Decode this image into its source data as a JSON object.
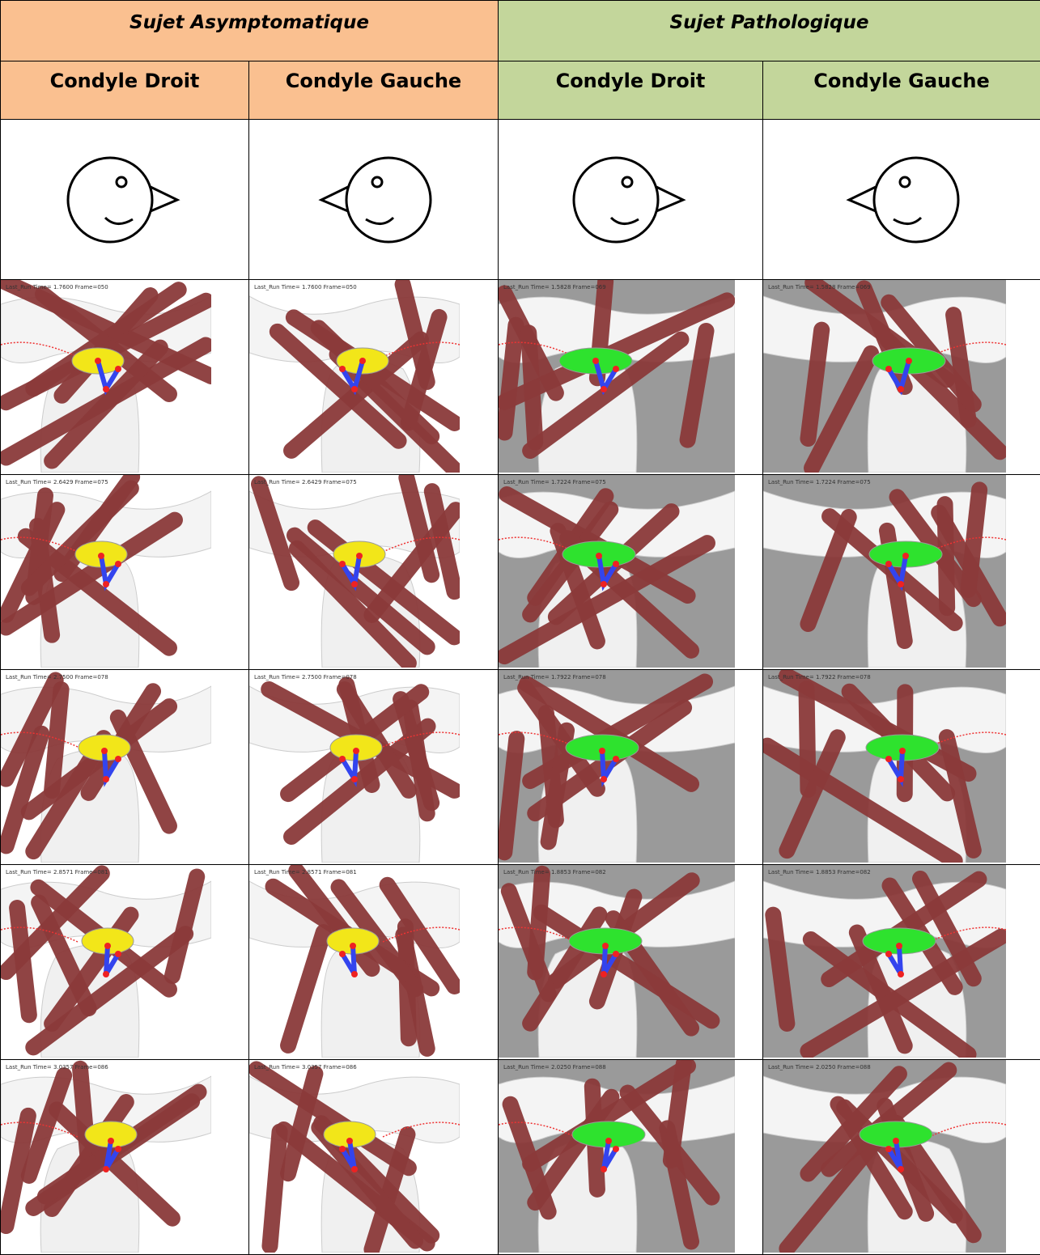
{
  "table": {
    "groups": [
      "Sujet Asymptomatique",
      "Sujet Pathologique"
    ],
    "columns": [
      "Condyle Droit",
      "Condyle Gauche",
      "Condyle Droit",
      "Condyle Gauche"
    ],
    "rows": [
      [
        "Last_Run Time= 1.7600 Frame=050",
        "Last_Run Time= 1.7600 Frame=050",
        "Last_Run Time= 1.5828 Frame=069",
        "Last_Run Time= 1.5828 Frame=069"
      ],
      [
        "Last_Run Time= 2.6429 Frame=075",
        "Last_Run Time= 2.6429 Frame=075",
        "Last_Run Time= 1.7224 Frame=075",
        "Last_Run Time= 1.7224 Frame=075"
      ],
      [
        "Last_Run Time= 2.7500 Frame=078",
        "Last_Run Time= 2.7500 Frame=078",
        "Last_Run Time= 1.7922 Frame=078",
        "Last_Run Time= 1.7922 Frame=078"
      ],
      [
        "Last_Run Time= 2.8571 Frame=081",
        "Last_Run Time= 2.8571 Frame=081",
        "Last_Run Time= 1.8853 Frame=082",
        "Last_Run Time= 1.8853 Frame=082"
      ],
      [
        "Last_Run Time= 3.0357 Frame=086",
        "Last_Run Time= 3.0357 Frame=086",
        "Last_Run Time= 2.0250 Frame=088",
        "Last_Run Time= 2.0250 Frame=088"
      ]
    ]
  }
}
